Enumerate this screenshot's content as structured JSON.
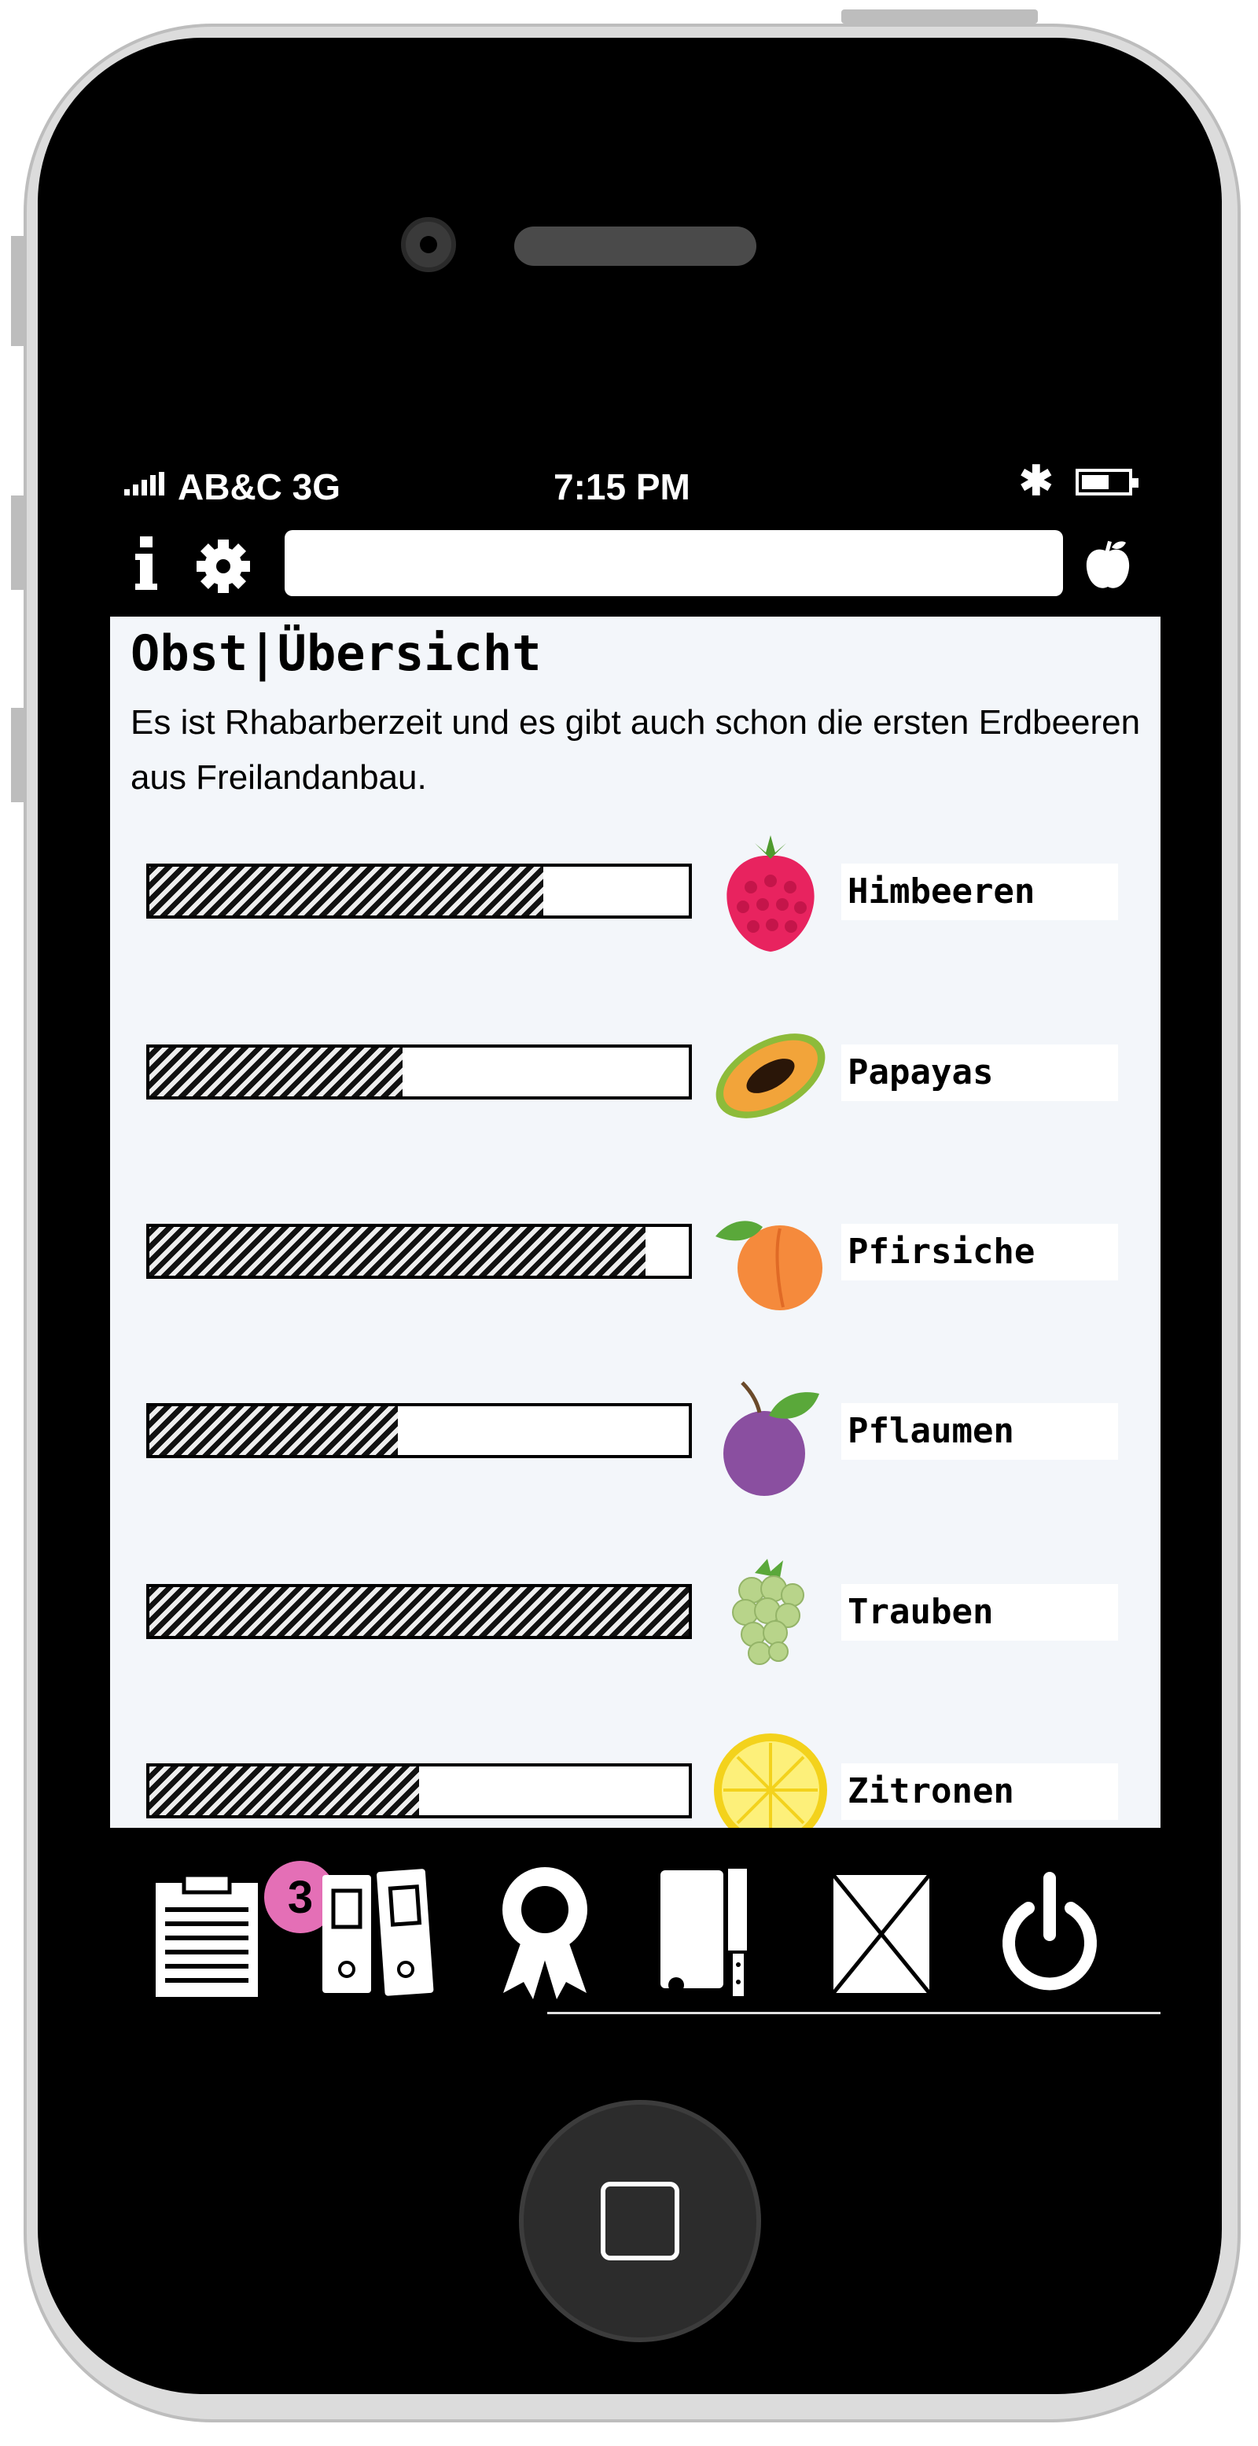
{
  "statusbar": {
    "carrier": "AB&C  3G",
    "time": "7:15  PM",
    "bluetooth_icon": "bluetooth-icon",
    "battery_level": 0.6
  },
  "toolbar": {
    "info_icon": "info-icon",
    "settings_icon": "gear-icon",
    "search_value": "",
    "apple_icon": "apple-icon"
  },
  "page": {
    "title": "Obst|Übersicht",
    "intro": "Es ist Rhabarberzeit und es gibt auch schon die ersten Erdbeeren aus Freilandanbau."
  },
  "fruits": [
    {
      "name": "Himbeeren",
      "level": 0.73,
      "icon": "raspberry-icon"
    },
    {
      "name": "Papayas",
      "level": 0.47,
      "icon": "papaya-icon"
    },
    {
      "name": "Pfirsiche",
      "level": 0.92,
      "icon": "peach-icon"
    },
    {
      "name": "Pflaumen",
      "level": 0.46,
      "icon": "plum-icon"
    },
    {
      "name": "Trauben",
      "level": 1.0,
      "icon": "grapes-icon"
    },
    {
      "name": "Zitronen",
      "level": 0.5,
      "icon": "lemon-icon"
    }
  ],
  "tabbar": {
    "tabs": [
      {
        "icon": "clipboard-icon",
        "badge": "3"
      },
      {
        "icon": "binders-icon"
      },
      {
        "icon": "award-ribbon-icon"
      },
      {
        "icon": "cutting-board-knife-icon"
      },
      {
        "icon": "envelope-icon"
      },
      {
        "icon": "power-icon"
      }
    ]
  },
  "colors": {
    "screen_background": "#f3f6fa",
    "badge": "#e46fb6",
    "raspberry": "#e8235f",
    "papaya": "#f2a43a",
    "peach": "#f58a3c",
    "plum": "#8a4fa0",
    "grapes": "#b8d48a",
    "lemon": "#f7e43a"
  }
}
